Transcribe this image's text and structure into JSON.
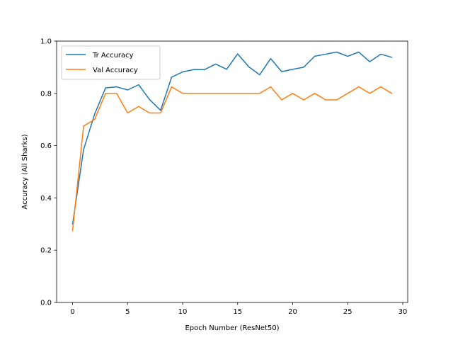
{
  "chart_data": {
    "type": "line",
    "title": "",
    "xlabel": "Epoch Number (ResNet50)",
    "ylabel": "Accuracy (All Sharks)",
    "xlim": [
      -1.45,
      30.45
    ],
    "ylim": [
      0.0,
      1.0
    ],
    "xticks": [
      0,
      5,
      10,
      15,
      20,
      25,
      30
    ],
    "yticks": [
      0.0,
      0.2,
      0.4,
      0.6,
      0.8,
      1.0
    ],
    "xtick_labels": [
      "0",
      "5",
      "10",
      "15",
      "20",
      "25",
      "30"
    ],
    "ytick_labels": [
      "0.0",
      "0.2",
      "0.4",
      "0.6",
      "0.8",
      "1.0"
    ],
    "grid": false,
    "legend_position": "upper-left",
    "x": [
      0,
      1,
      2,
      3,
      4,
      5,
      6,
      7,
      8,
      9,
      10,
      11,
      12,
      13,
      14,
      15,
      16,
      17,
      18,
      19,
      20,
      21,
      22,
      23,
      24,
      25,
      26,
      27,
      28,
      29
    ],
    "series": [
      {
        "name": "Tr Accuracy",
        "color": "#1f77b4",
        "values": [
          0.3,
          0.585,
          0.72,
          0.821,
          0.825,
          0.813,
          0.833,
          0.776,
          0.735,
          0.862,
          0.882,
          0.891,
          0.891,
          0.912,
          0.892,
          0.951,
          0.902,
          0.871,
          0.933,
          0.883,
          0.892,
          0.9,
          0.942,
          0.95,
          0.958,
          0.942,
          0.958,
          0.921,
          0.95,
          0.938
        ]
      },
      {
        "name": "Val Accuracy",
        "color": "#ff7f0e",
        "values": [
          0.275,
          0.675,
          0.7,
          0.8,
          0.8,
          0.725,
          0.75,
          0.725,
          0.725,
          0.825,
          0.8,
          0.8,
          0.8,
          0.8,
          0.8,
          0.8,
          0.8,
          0.8,
          0.825,
          0.775,
          0.8,
          0.775,
          0.8,
          0.775,
          0.775,
          0.8,
          0.825,
          0.8,
          0.825,
          0.8
        ]
      }
    ]
  }
}
